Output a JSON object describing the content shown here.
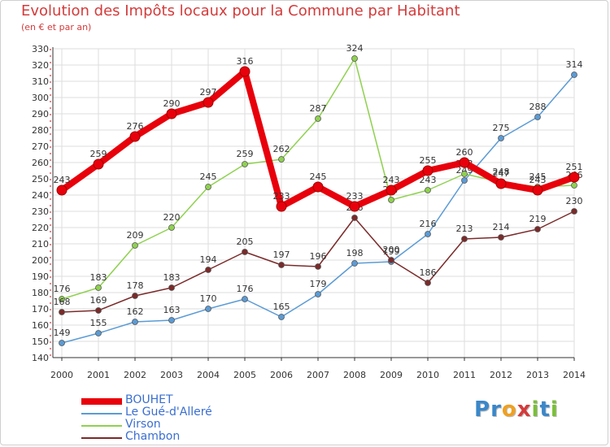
{
  "title": "Evolution des Impôts locaux pour la Commune par Habitant",
  "subtitle": "(en € et par an)",
  "logo": {
    "letters": [
      "P",
      "r",
      "o",
      "x",
      "i",
      "t",
      "i"
    ],
    "colors": [
      "#3a87c9",
      "#3a87c9",
      "#f0a020",
      "#d43b3b",
      "#7abf3a",
      "#3a87c9",
      "#7abf3a"
    ]
  },
  "chart_data": {
    "type": "line",
    "title": "Evolution des Impôts locaux pour la Commune par Habitant",
    "subtitle": "(en € et par an)",
    "x": [
      2000,
      2001,
      2002,
      2003,
      2004,
      2005,
      2006,
      2007,
      2008,
      2009,
      2010,
      2011,
      2012,
      2013,
      2014
    ],
    "ylim": [
      140,
      330
    ],
    "yticks": [
      140,
      150,
      160,
      170,
      180,
      190,
      200,
      210,
      220,
      230,
      240,
      250,
      260,
      270,
      280,
      290,
      300,
      310,
      320,
      330
    ],
    "grid": true,
    "legend_position": "bottom-left",
    "series": [
      {
        "name": "Le Gué-d'Alleré",
        "color": "#5b9bd5",
        "values": [
          149,
          155,
          162,
          163,
          170,
          176,
          165,
          179,
          198,
          199,
          216,
          249,
          275,
          288,
          314
        ]
      },
      {
        "name": "Virson",
        "color": "#8fd14f",
        "values": [
          176,
          183,
          209,
          220,
          245,
          259,
          262,
          287,
          324,
          237,
          243,
          253,
          248,
          245,
          246
        ]
      },
      {
        "name": "Chambon",
        "color": "#7b2a2a",
        "values": [
          168,
          169,
          178,
          183,
          194,
          205,
          197,
          196,
          226,
          200,
          186,
          213,
          214,
          219,
          230
        ]
      },
      {
        "name": "BOUHET",
        "color": "#e8000b",
        "values": [
          243,
          259,
          276,
          290,
          297,
          316,
          233,
          245,
          233,
          243,
          255,
          260,
          247,
          243,
          251
        ]
      }
    ],
    "legend": [
      {
        "name": "BOUHET",
        "color": "#e8000b",
        "width": 8
      },
      {
        "name": "Le Gué-d'Alleré",
        "color": "#5b9bd5",
        "width": 1.5
      },
      {
        "name": "Virson",
        "color": "#8fd14f",
        "width": 1.5
      },
      {
        "name": "Chambon",
        "color": "#7b2a2a",
        "width": 1.5
      }
    ]
  }
}
